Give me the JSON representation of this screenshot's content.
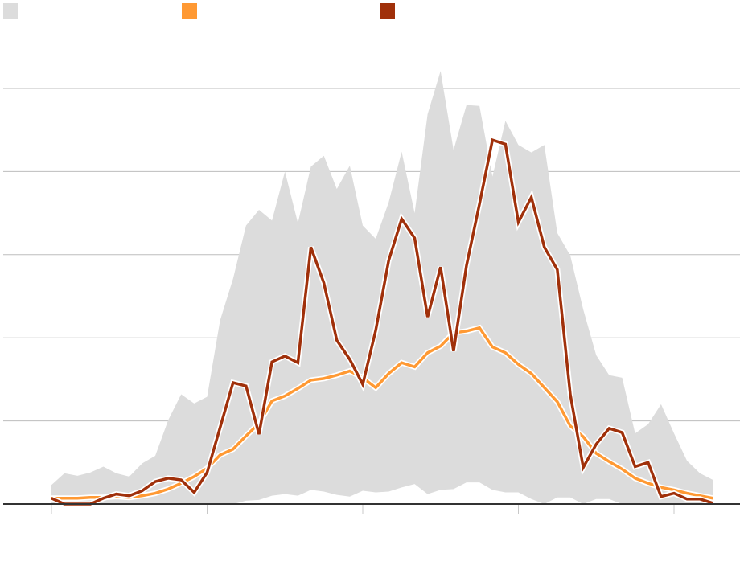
{
  "chart_data": {
    "type": "line",
    "title": "",
    "xlabel": "",
    "ylabel": "",
    "ylim": [
      0,
      50
    ],
    "xlim": [
      0,
      51
    ],
    "grid": true,
    "y_gridlines": [
      10,
      20,
      30,
      40,
      50
    ],
    "x_ticks": [
      0,
      12,
      24,
      36,
      48
    ],
    "legend_placement": "top-left",
    "x": [
      0,
      1,
      2,
      3,
      4,
      5,
      6,
      7,
      8,
      9,
      10,
      11,
      12,
      13,
      14,
      15,
      16,
      17,
      18,
      19,
      20,
      21,
      22,
      23,
      24,
      25,
      26,
      27,
      28,
      29,
      30,
      31,
      32,
      33,
      34,
      35,
      36,
      37,
      38,
      39,
      40,
      41,
      42,
      43,
      44,
      45,
      46,
      47,
      48,
      49,
      50,
      51
    ],
    "band": {
      "color": "#dcdcdc",
      "lower": [
        0,
        0,
        0,
        0,
        0,
        0,
        0,
        0,
        0,
        0,
        0,
        0,
        0,
        0,
        0,
        0.4,
        0.5,
        1.0,
        1.2,
        1.0,
        1.7,
        1.5,
        1.1,
        0.9,
        1.6,
        1.4,
        1.5,
        2.0,
        2.4,
        1.2,
        1.7,
        1.8,
        2.6,
        2.6,
        1.7,
        1.4,
        1.4,
        0.6,
        0,
        0.8,
        0.8,
        0,
        0.6,
        0.6,
        0,
        0,
        0,
        0,
        0,
        0,
        0,
        0
      ],
      "upper": [
        2.3,
        3.7,
        3.4,
        3.8,
        4.5,
        3.7,
        3.3,
        4.9,
        5.8,
        10.1,
        13.2,
        12.1,
        12.9,
        22.1,
        27.1,
        33.5,
        35.4,
        34.1,
        40.0,
        33.8,
        40.6,
        41.9,
        37.9,
        40.7,
        33.5,
        31.9,
        36.3,
        42.4,
        35.0,
        46.9,
        52.1,
        42.6,
        48.0,
        47.9,
        39.4,
        46.1,
        43.2,
        42.3,
        43.2,
        32.6,
        29.9,
        23.4,
        17.9,
        15.5,
        15.2,
        8.5,
        9.6,
        12.0,
        8.5,
        5.2,
        3.7,
        2.9
      ]
    },
    "series": [
      {
        "name": "",
        "color": "#ff9933",
        "values": [
          0.7,
          0.7,
          0.7,
          0.8,
          0.8,
          0.9,
          0.8,
          1.0,
          1.3,
          1.8,
          2.5,
          3.3,
          4.3,
          5.9,
          6.6,
          8.2,
          9.7,
          12.4,
          13.0,
          13.9,
          14.9,
          15.1,
          15.5,
          16.0,
          15.2,
          14.0,
          15.7,
          17.0,
          16.5,
          18.2,
          19.0,
          20.6,
          20.8,
          21.2,
          18.9,
          18.2,
          16.8,
          15.7,
          14.0,
          12.3,
          9.4,
          8.1,
          6.1,
          5.1,
          4.2,
          3.1,
          2.5,
          2.0,
          1.7,
          1.3,
          1.0,
          0.7
        ]
      },
      {
        "name": "",
        "color": "#a0300a",
        "values": [
          0.7,
          0,
          0,
          0,
          0.7,
          1.2,
          1.0,
          1.6,
          2.7,
          3.1,
          2.9,
          1.4,
          3.8,
          9.2,
          14.6,
          14.2,
          8.4,
          17.1,
          17.8,
          17.0,
          30.9,
          26.6,
          19.7,
          17.4,
          14.4,
          20.9,
          29.3,
          34.3,
          32.0,
          22.5,
          28.5,
          18.4,
          28.7,
          36.1,
          43.8,
          43.3,
          33.9,
          36.9,
          30.9,
          28.2,
          13.2,
          4.4,
          7.2,
          9.1,
          8.6,
          4.5,
          5.0,
          0.9,
          1.3,
          0.6,
          0.6,
          0.1
        ]
      }
    ]
  }
}
